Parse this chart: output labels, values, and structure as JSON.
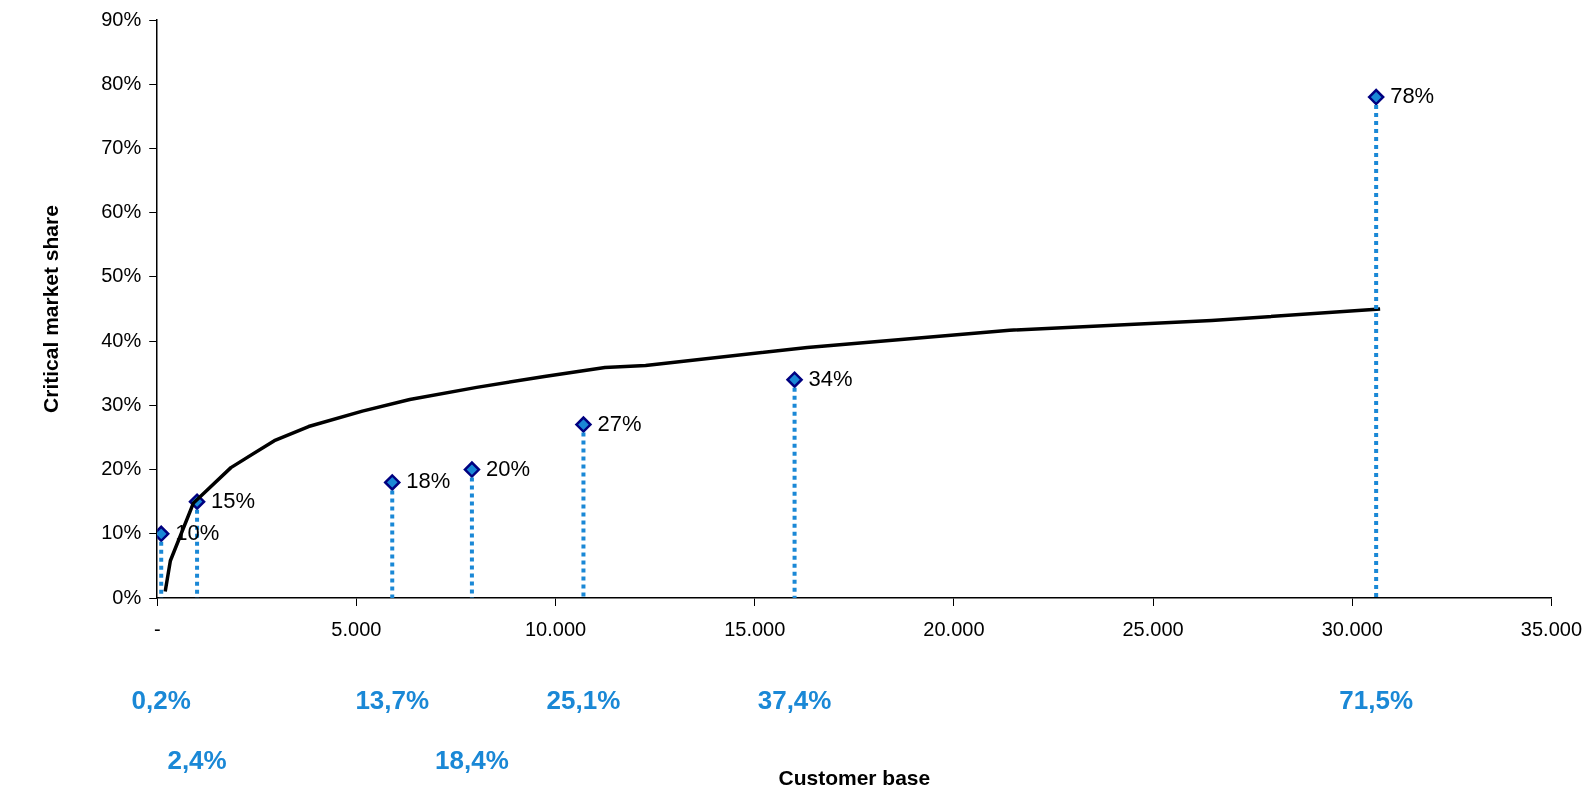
{
  "chart_data": {
    "type": "line",
    "ylabel": "Critical market share",
    "xlim": [
      0,
      35000
    ],
    "xticks": [
      {
        "value": 0,
        "label": "-"
      },
      {
        "value": 5000,
        "label": "5.000"
      },
      {
        "value": 10000,
        "label": "10.000"
      },
      {
        "value": 15000,
        "label": "15.000"
      },
      {
        "value": 20000,
        "label": "20.000"
      },
      {
        "value": 25000,
        "label": "25.000"
      },
      {
        "value": 30000,
        "label": "30.000"
      },
      {
        "value": 35000,
        "label": "35.000"
      }
    ],
    "ylim": [
      0,
      90
    ],
    "yticks": [
      {
        "value": 0,
        "label": "0%"
      },
      {
        "value": 10,
        "label": "10%"
      },
      {
        "value": 20,
        "label": "20%"
      },
      {
        "value": 30,
        "label": "30%"
      },
      {
        "value": 40,
        "label": "40%"
      },
      {
        "value": 50,
        "label": "50%"
      },
      {
        "value": 60,
        "label": "60%"
      },
      {
        "value": 70,
        "label": "70%"
      },
      {
        "value": 80,
        "label": "80%"
      },
      {
        "value": 90,
        "label": "90%"
      }
    ],
    "grid": false,
    "legend": false,
    "series": [
      {
        "type": "line",
        "color": "#000000",
        "marker": "none",
        "line_style": "solid",
        "x": [
          200,
          330,
          910,
          1170,
          1850,
          2940,
          3800,
          5150,
          6340,
          8020,
          9720,
          11240,
          12260,
          16320,
          21400,
          26470,
          30700
        ],
        "values": [
          1,
          5.8,
          14.8,
          16.3,
          20.3,
          24.5,
          26.7,
          29.1,
          30.9,
          32.8,
          34.5,
          35.9,
          36.2,
          39.0,
          41.7,
          43.2,
          45
        ]
      },
      {
        "type": "lollipop",
        "color": "#1a88d6",
        "marker": "diamond",
        "line_style": "dotted",
        "x": [
          100,
          1000,
          5900,
          7900,
          10700,
          16000,
          30600
        ],
        "values": [
          10,
          15,
          18,
          20,
          27,
          34,
          78
        ],
        "value_labels": [
          "10%",
          "15%",
          "18%",
          "20%",
          "27%",
          "34%",
          "78%"
        ]
      }
    ],
    "annotations": [
      "0,2%",
      "2,4%",
      "13,7%",
      "18,4%",
      "25,1%",
      "37,4%",
      "71,5%",
      "Customer base"
    ]
  }
}
